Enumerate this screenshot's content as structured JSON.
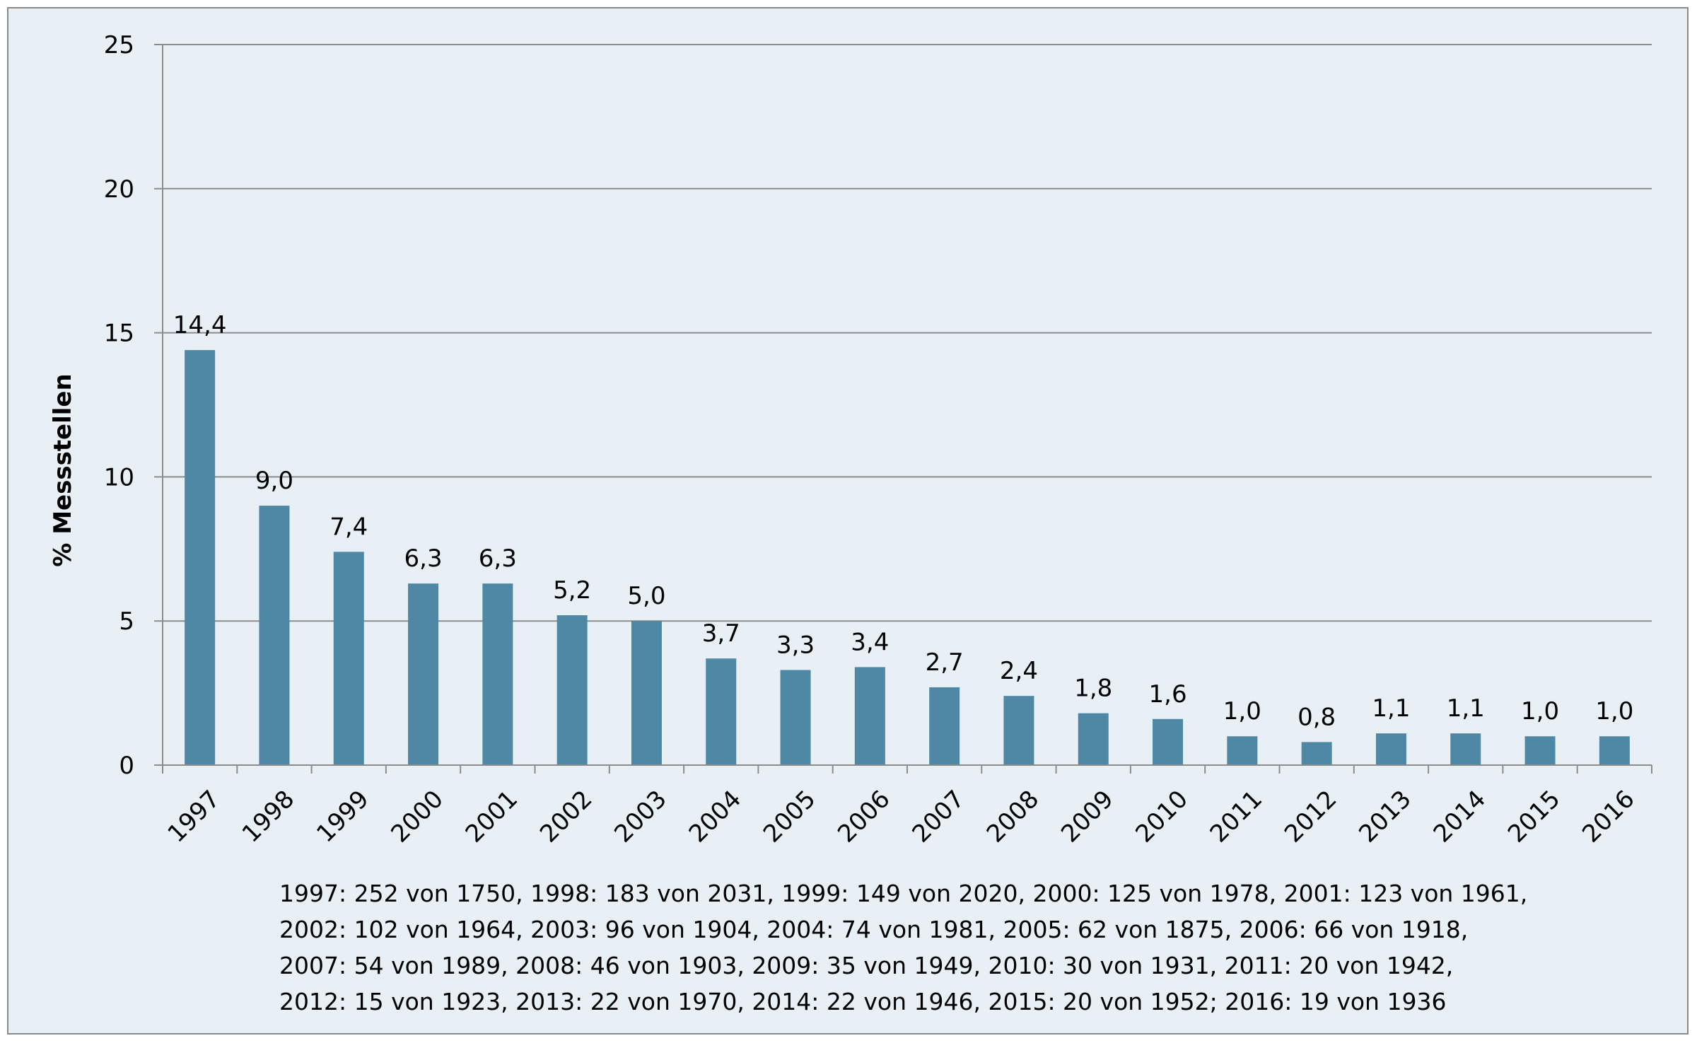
{
  "chart_data": {
    "type": "bar",
    "title": "",
    "xlabel": "",
    "ylabel": "% Messstellen",
    "ylim": [
      0,
      25
    ],
    "yticks": [
      "0",
      "5",
      "10",
      "15",
      "20",
      "25"
    ],
    "grid": true,
    "legend": "none",
    "bar_color": "#4f88a4",
    "categories": [
      "1997",
      "1998",
      "1999",
      "2000",
      "2001",
      "2002",
      "2003",
      "2004",
      "2005",
      "2006",
      "2007",
      "2008",
      "2009",
      "2010",
      "2011",
      "2012",
      "2013",
      "2014",
      "2015",
      "2016"
    ],
    "values": [
      14.4,
      9.0,
      7.4,
      6.3,
      6.3,
      5.2,
      5.0,
      3.7,
      3.3,
      3.4,
      2.7,
      2.4,
      1.8,
      1.6,
      1.0,
      0.8,
      1.1,
      1.1,
      1.0,
      1.0
    ],
    "data_labels": [
      "14,4",
      "9,0",
      "7,4",
      "6,3",
      "6,3",
      "5,2",
      "5,0",
      "3,7",
      "3,3",
      "3,4",
      "2,7",
      "2,4",
      "1,8",
      "1,6",
      "1,0",
      "0,8",
      "1,1",
      "1,1",
      "1,0",
      "1,0"
    ],
    "notes": [
      "1997: 252 von 1750, 1998: 183 von 2031, 1999: 149 von 2020, 2000: 125 von 1978, 2001: 123 von 1961,",
      "2002: 102 von 1964, 2003: 96 von 1904, 2004: 74 von 1981, 2005: 62 von 1875, 2006: 66 von 1918,",
      "2007: 54 von 1989, 2008: 46 von 1903, 2009: 35 von 1949, 2010: 30 von 1931, 2011: 20 von 1942,",
      "2012: 15 von 1923, 2013: 22 von 1970, 2014: 22 von 1946, 2015: 20 von 1952; 2016: 19 von 1936"
    ]
  }
}
